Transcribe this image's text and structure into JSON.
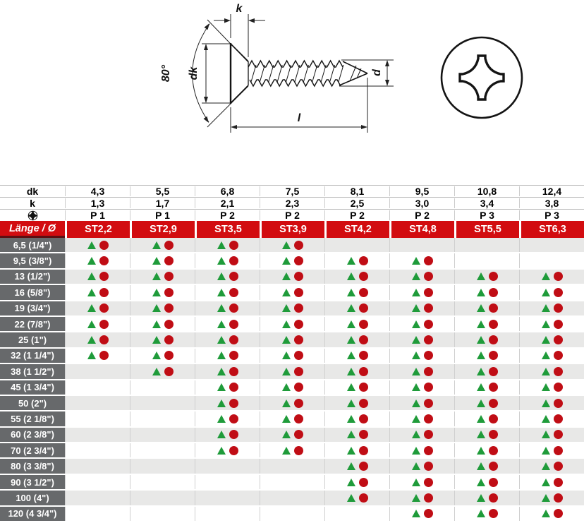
{
  "diagram": {
    "labels": {
      "k": "k",
      "dk": "dk",
      "angle": "80°",
      "d": "d",
      "l": "l"
    }
  },
  "table": {
    "spec_rows": [
      {
        "label": "dk",
        "values": [
          "4,3",
          "5,5",
          "6,8",
          "7,5",
          "8,1",
          "9,5",
          "10,8",
          "12,4"
        ]
      },
      {
        "label": "k",
        "values": [
          "1,3",
          "1,7",
          "2,1",
          "2,3",
          "2,5",
          "3,0",
          "3,4",
          "3,8"
        ]
      },
      {
        "label": "",
        "icon": "phillips-icon",
        "values": [
          "P 1",
          "P 1",
          "P 2",
          "P 2",
          "P 2",
          "P 2",
          "P 3",
          "P 3"
        ]
      }
    ],
    "header": {
      "length_label": "Länge / Ø",
      "sizes": [
        "ST2,2",
        "ST2,9",
        "ST3,5",
        "ST3,9",
        "ST4,2",
        "ST4,8",
        "ST5,5",
        "ST6,3"
      ]
    },
    "rows": [
      {
        "length": "6,5 (1/4\")",
        "available": [
          1,
          1,
          1,
          1,
          0,
          0,
          0,
          0
        ]
      },
      {
        "length": "9,5 (3/8\")",
        "available": [
          1,
          1,
          1,
          1,
          1,
          1,
          0,
          0
        ]
      },
      {
        "length": "13 (1/2\")",
        "available": [
          1,
          1,
          1,
          1,
          1,
          1,
          1,
          1
        ]
      },
      {
        "length": "16 (5/8\")",
        "available": [
          1,
          1,
          1,
          1,
          1,
          1,
          1,
          1
        ]
      },
      {
        "length": "19 (3/4\")",
        "available": [
          1,
          1,
          1,
          1,
          1,
          1,
          1,
          1
        ]
      },
      {
        "length": "22 (7/8\")",
        "available": [
          1,
          1,
          1,
          1,
          1,
          1,
          1,
          1
        ]
      },
      {
        "length": "25 (1\")",
        "available": [
          1,
          1,
          1,
          1,
          1,
          1,
          1,
          1
        ]
      },
      {
        "length": "32 (1 1/4\")",
        "available": [
          1,
          1,
          1,
          1,
          1,
          1,
          1,
          1
        ]
      },
      {
        "length": "38 (1 1/2\")",
        "available": [
          0,
          1,
          1,
          1,
          1,
          1,
          1,
          1
        ]
      },
      {
        "length": "45 (1 3/4\")",
        "available": [
          0,
          0,
          1,
          1,
          1,
          1,
          1,
          1
        ]
      },
      {
        "length": "50 (2\")",
        "available": [
          0,
          0,
          1,
          1,
          1,
          1,
          1,
          1
        ]
      },
      {
        "length": "55 (2 1/8\")",
        "available": [
          0,
          0,
          1,
          1,
          1,
          1,
          1,
          1
        ]
      },
      {
        "length": "60 (2 3/8\")",
        "available": [
          0,
          0,
          1,
          1,
          1,
          1,
          1,
          1
        ]
      },
      {
        "length": "70 (2 3/4\")",
        "available": [
          0,
          0,
          1,
          1,
          1,
          1,
          1,
          1
        ]
      },
      {
        "length": "80 (3 3/8\")",
        "available": [
          0,
          0,
          0,
          0,
          1,
          1,
          1,
          1
        ]
      },
      {
        "length": "90 (3 1/2\")",
        "available": [
          0,
          0,
          0,
          0,
          1,
          1,
          1,
          1
        ]
      },
      {
        "length": "100 (4\")",
        "available": [
          0,
          0,
          0,
          0,
          1,
          1,
          1,
          1
        ]
      },
      {
        "length": "120 (4 3/4\")",
        "available": [
          0,
          0,
          0,
          0,
          0,
          1,
          1,
          1
        ]
      }
    ]
  },
  "colors": {
    "header_red": "#d20c10",
    "label_gray": "#67696b",
    "row_alt": "#e8e8e7",
    "triangle_green": "#1f9b3a",
    "circle_red": "#c00d15"
  }
}
